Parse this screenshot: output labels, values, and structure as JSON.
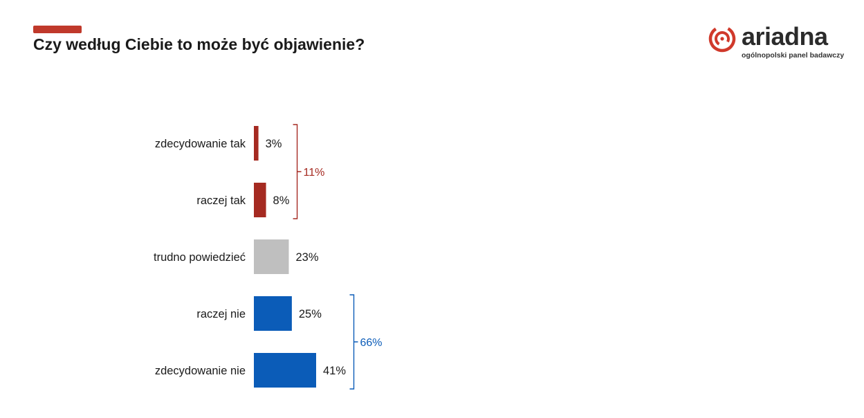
{
  "title": "Czy według Ciebie to może być objawienie?",
  "logo": {
    "word": "ariadna",
    "tagline": "ogólnopolski panel badawczy",
    "mark": "ariadna-spiral-mark"
  },
  "colors": {
    "accent": "#c0392b",
    "positive": "#a52a21",
    "neutral": "#bfbfbf",
    "negative": "#0b5cb8",
    "text": "#1a1a1a"
  },
  "chart_data": {
    "type": "bar",
    "orientation": "horizontal",
    "categories": [
      "zdecydowanie tak",
      "raczej tak",
      "trudno powiedzieć",
      "raczej nie",
      "zdecydowanie nie"
    ],
    "values": [
      3,
      8,
      23,
      25,
      41
    ],
    "value_labels": [
      "3%",
      "8%",
      "23%",
      "25%",
      "41%"
    ],
    "bar_colors": [
      "#a52a21",
      "#a52a21",
      "#bfbfbf",
      "#0b5cb8",
      "#0b5cb8"
    ],
    "groups": [
      {
        "label": "11%",
        "from": 0,
        "to": 1,
        "color": "#a52a21"
      },
      {
        "label": "66%",
        "from": 3,
        "to": 4,
        "color": "#0b5cb8"
      }
    ],
    "xlim": [
      0,
      100
    ],
    "grid": false,
    "legend": "none"
  }
}
